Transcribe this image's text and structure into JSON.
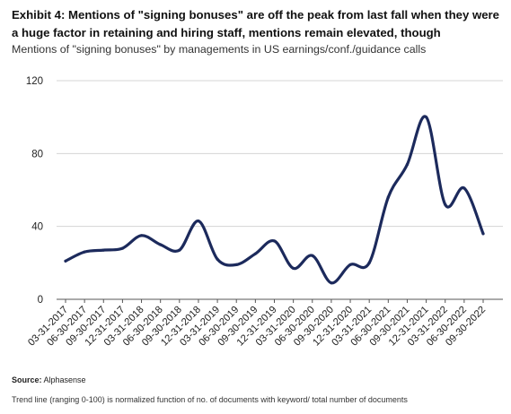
{
  "title": "Exhibit 4: Mentions of \"signing bonuses\" are off the peak from last fall when they were a huge factor in retaining and hiring staff, mentions remain elevated, though",
  "subtitle": "Mentions of \"signing bonuses\" by managements in US earnings/conf./guidance calls",
  "source_label": "Source:",
  "source_text": "Alphasense",
  "footnote": "Trend line (ranging 0-100) is normalized function of no. of documents with keyword/ total number of documents",
  "colors": {
    "line": "#1c2a5c",
    "axis": "#555555",
    "grid": "#d4d4d4"
  },
  "chart_data": {
    "type": "line",
    "ylim": [
      0,
      120
    ],
    "yticks": [
      0,
      40,
      80,
      120
    ],
    "grid": true,
    "xtick_labels": [
      "03-31-2017",
      "06-30-2017",
      "09-30-2017",
      "12-31-2017",
      "03-31-2018",
      "06-30-2018",
      "09-30-2018",
      "12-31-2018",
      "03-31-2019",
      "06-30-2019",
      "09-30-2019",
      "12-31-2019",
      "03-31-2020",
      "06-30-2020",
      "09-30-2020",
      "12-31-2020",
      "03-31-2021",
      "06-30-2021",
      "09-30-2021",
      "12-31-2021",
      "03-31-2022",
      "06-30-2022",
      "09-30-2022"
    ],
    "series": [
      {
        "values": [
          21,
          26,
          27,
          28,
          35,
          30,
          27,
          43,
          22,
          19,
          25,
          32,
          17,
          24,
          9,
          19,
          20,
          56,
          74,
          100,
          52,
          61,
          36
        ]
      }
    ]
  }
}
